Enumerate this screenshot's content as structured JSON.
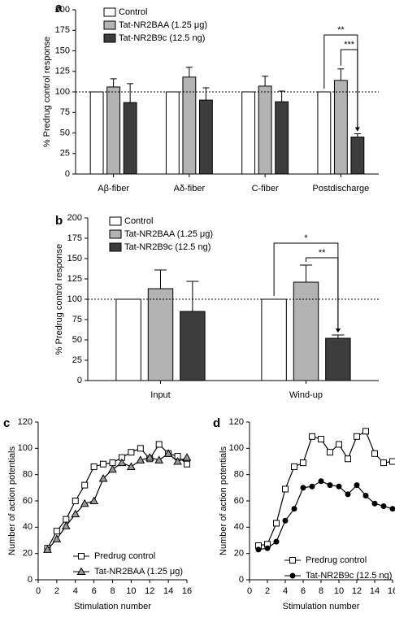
{
  "chart_data": [
    {
      "type": "bar",
      "panel": "a",
      "ylabel": "% Predrug control response",
      "categories": [
        "Aβ-fiber",
        "Aδ-fiber",
        "C-fiber",
        "Postdischarge"
      ],
      "series": [
        {
          "name": "Control",
          "color": "#ffffff",
          "values": [
            100,
            100,
            100,
            100
          ]
        },
        {
          "name": "Tat-NR2BAA (1.25 μg)",
          "color": "#b3b3b3",
          "values": [
            106,
            118,
            107,
            114
          ],
          "errors": [
            10,
            12,
            12,
            14
          ]
        },
        {
          "name": "Tat-NR2B9c (12.5 ng)",
          "color": "#3d3d3d",
          "values": [
            87,
            90,
            88,
            45
          ],
          "errors": [
            23,
            15,
            13,
            4
          ]
        }
      ],
      "ylim": [
        0,
        200
      ],
      "yticks": [
        0,
        25,
        50,
        75,
        100,
        125,
        150,
        175,
        200
      ],
      "refline": 100,
      "annotations": [
        "**",
        "***"
      ]
    },
    {
      "type": "bar",
      "panel": "b",
      "ylabel": "% Predrug control response",
      "categories": [
        "Input",
        "Wind-up"
      ],
      "series": [
        {
          "name": "Control",
          "color": "#ffffff",
          "values": [
            100,
            100
          ]
        },
        {
          "name": "Tat-NR2BAA (1.25 μg)",
          "color": "#b3b3b3",
          "values": [
            113,
            121
          ],
          "errors": [
            23,
            21
          ]
        },
        {
          "name": "Tat-NR2B9c (12.5 ng)",
          "color": "#3d3d3d",
          "values": [
            85,
            52
          ],
          "errors": [
            37,
            4
          ]
        }
      ],
      "ylim": [
        0,
        200
      ],
      "yticks": [
        0,
        25,
        50,
        75,
        100,
        125,
        150,
        175,
        200
      ],
      "refline": 100,
      "annotations": [
        "*",
        "**"
      ]
    },
    {
      "type": "line",
      "panel": "c",
      "ylabel": "Number of action potentials",
      "xlabel": "Stimulation number",
      "x": [
        1,
        2,
        3,
        4,
        5,
        6,
        7,
        8,
        9,
        10,
        11,
        12,
        13,
        14,
        15,
        16
      ],
      "series": [
        {
          "name": "Predrug control",
          "color": "#000000",
          "marker": "square",
          "values": [
            24,
            37,
            46,
            60,
            72,
            86,
            88,
            89,
            93,
            97,
            100,
            92,
            103,
            96,
            94,
            88
          ]
        },
        {
          "name": "Tat-NR2BAA (1.25 μg)",
          "color": "#000000",
          "marker": "triangle",
          "values": [
            23,
            31,
            41,
            50,
            58,
            60,
            77,
            84,
            89,
            86,
            91,
            93,
            91,
            96,
            90,
            93
          ]
        }
      ],
      "xlim": [
        0,
        16
      ],
      "xticks": [
        0,
        2,
        4,
        6,
        8,
        10,
        12,
        14,
        16
      ],
      "ylim": [
        0,
        120
      ],
      "yticks": [
        0,
        20,
        40,
        60,
        80,
        100,
        120
      ]
    },
    {
      "type": "line",
      "panel": "d",
      "ylabel": "Number of action potentials",
      "xlabel": "Stimulation number",
      "x": [
        1,
        2,
        3,
        4,
        5,
        6,
        7,
        8,
        9,
        10,
        11,
        12,
        13,
        14,
        15,
        16
      ],
      "series": [
        {
          "name": "Predrug control",
          "color": "#000000",
          "marker": "square",
          "values": [
            26,
            27,
            43,
            69,
            86,
            89,
            109,
            107,
            97,
            103,
            92,
            109,
            113,
            96,
            89,
            90
          ]
        },
        {
          "name": "Tat-NR2B9c (12.5 ng)",
          "color": "#000000",
          "marker": "circle",
          "values": [
            23,
            24,
            29,
            45,
            54,
            70,
            71,
            75,
            72,
            71,
            65,
            72,
            64,
            58,
            56,
            54
          ]
        }
      ],
      "xlim": [
        0,
        16
      ],
      "xticks": [
        0,
        2,
        4,
        6,
        8,
        10,
        12,
        14,
        16
      ],
      "ylim": [
        0,
        120
      ],
      "yticks": [
        0,
        20,
        40,
        60,
        80,
        100,
        120
      ]
    }
  ]
}
